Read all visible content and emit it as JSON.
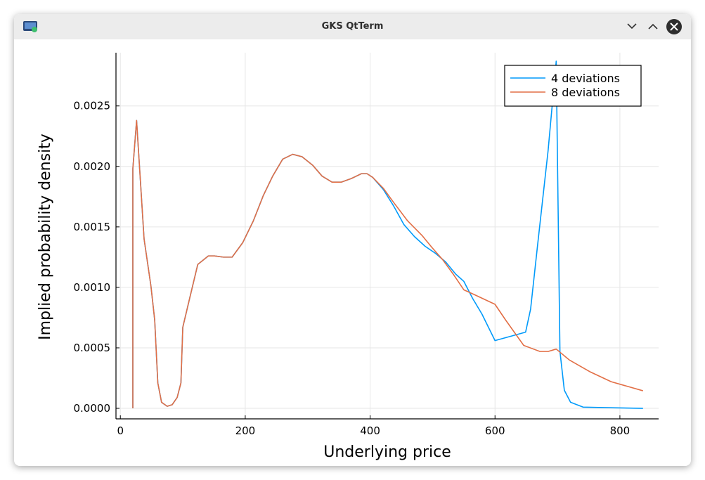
{
  "window": {
    "title": "GKS QtTerm"
  },
  "chart_data": {
    "type": "line",
    "x_label": "Underlying price",
    "y_label": "Implied probability density",
    "xlim": [
      -7,
      862
    ],
    "ylim": [
      -8.7e-05,
      0.00294
    ],
    "xticks": [
      0,
      200,
      400,
      600,
      800
    ],
    "yticks": [
      {
        "value": 0,
        "label": "0.0000"
      },
      {
        "value": 0.0005,
        "label": "0.0005"
      },
      {
        "value": 0.001,
        "label": "0.0010"
      },
      {
        "value": 0.0015,
        "label": "0.0015"
      },
      {
        "value": 0.002,
        "label": "0.0020"
      },
      {
        "value": 0.0025,
        "label": "0.0025"
      }
    ],
    "grid": true,
    "legend": "top-right",
    "series": [
      {
        "name": "4 deviations",
        "color": "#009afa",
        "x": [
          20,
          20,
          26,
          38,
          49,
          55,
          60,
          66,
          75,
          83,
          91,
          97,
          100,
          111,
          124,
          141,
          151,
          165,
          179,
          196,
          213,
          229,
          244,
          260,
          276,
          291,
          308,
          323,
          339,
          354,
          370,
          386,
          395,
          404,
          421,
          438,
          454,
          471,
          488,
          505,
          521,
          537,
          550,
          564,
          579,
          600,
          649,
          657,
          668,
          685,
          698,
          704,
          711,
          721,
          741,
          786,
          837
        ],
        "values": [
          0,
          0.00198,
          0.00238,
          0.0014,
          0.00101,
          0.00073,
          0.00021,
          5e-05,
          1.7e-05,
          3e-05,
          9e-05,
          0.00021,
          0.00067,
          0.00091,
          0.00119,
          0.00126,
          0.00126,
          0.00125,
          0.00125,
          0.00137,
          0.00155,
          0.00176,
          0.00192,
          0.00206,
          0.0021,
          0.00208,
          0.00201,
          0.00192,
          0.00187,
          0.00187,
          0.0019,
          0.00194,
          0.00194,
          0.00191,
          0.00181,
          0.00167,
          0.00152,
          0.00142,
          0.00134,
          0.00128,
          0.00121,
          0.00111,
          0.00105,
          0.00091,
          0.00078,
          0.00056,
          0.00063,
          0.00082,
          0.00134,
          0.00213,
          0.00287,
          0.00047,
          0.00015,
          5e-05,
          1e-05,
          5e-06,
          0
        ]
      },
      {
        "name": "8 deviations",
        "color": "#e26f46",
        "x": [
          20,
          20,
          26,
          38,
          49,
          55,
          60,
          66,
          75,
          83,
          91,
          97,
          100,
          111,
          124,
          141,
          151,
          165,
          179,
          196,
          213,
          229,
          244,
          260,
          276,
          291,
          308,
          323,
          339,
          354,
          370,
          386,
          395,
          404,
          421,
          438,
          460,
          483,
          499,
          516,
          533,
          550,
          567,
          600,
          617,
          646,
          672,
          685,
          698,
          719,
          753,
          786,
          837
        ],
        "values": [
          0,
          0.00198,
          0.00238,
          0.0014,
          0.00101,
          0.00073,
          0.00021,
          5e-05,
          1.7e-05,
          3e-05,
          9e-05,
          0.00021,
          0.00067,
          0.00091,
          0.00119,
          0.00126,
          0.00126,
          0.00125,
          0.00125,
          0.00137,
          0.00155,
          0.00176,
          0.00192,
          0.00206,
          0.0021,
          0.00208,
          0.00201,
          0.00192,
          0.00187,
          0.00187,
          0.0019,
          0.00194,
          0.00194,
          0.00191,
          0.00182,
          0.0017,
          0.00155,
          0.00143,
          0.00133,
          0.00123,
          0.00111,
          0.00098,
          0.00094,
          0.00086,
          0.00073,
          0.00052,
          0.00047,
          0.00047,
          0.00049,
          0.0004,
          0.0003,
          0.00022,
          0.000145
        ]
      }
    ]
  }
}
